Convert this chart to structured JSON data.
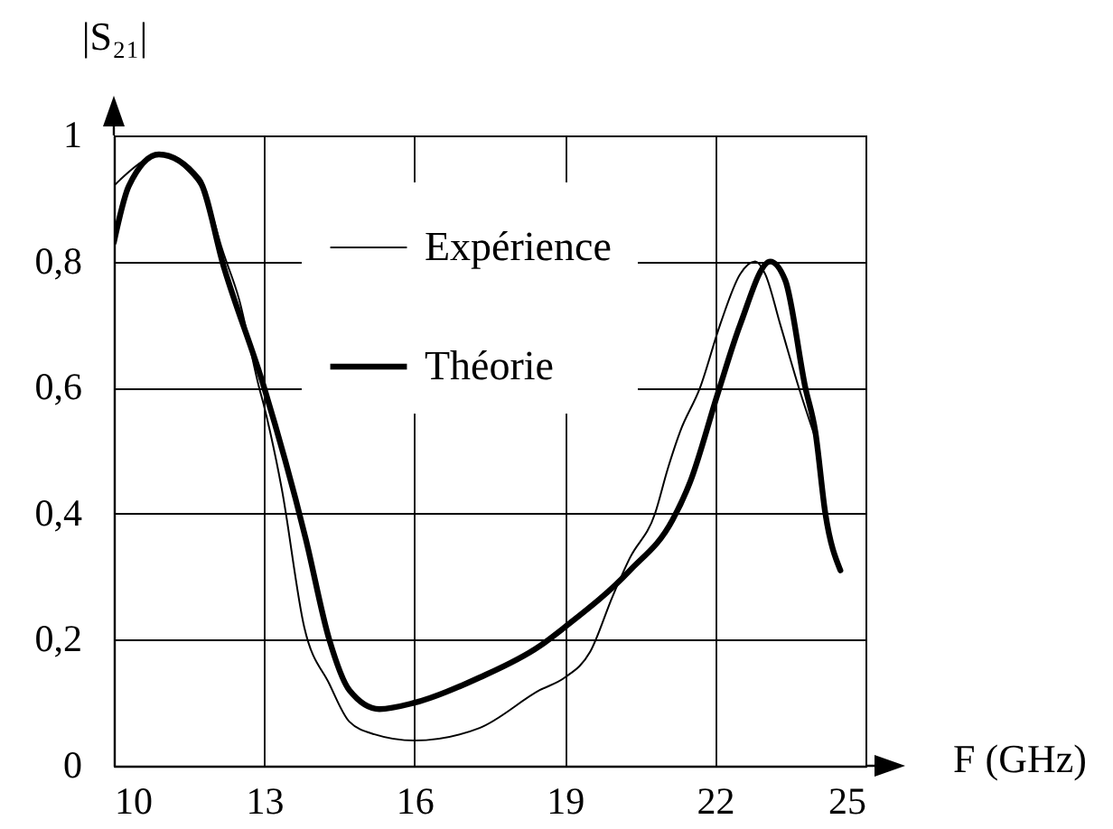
{
  "chart_data": {
    "type": "line",
    "xlabel": "F (GHz)",
    "ylabel": "|S₂₁|",
    "xlim": [
      10,
      25
    ],
    "xticks": [
      10,
      13,
      16,
      19,
      22,
      25
    ],
    "ylim": [
      0,
      1
    ],
    "yticks": [
      0,
      {
        "value": 0.2,
        "label": "0,2"
      },
      {
        "value": 0.4,
        "label": "0,4"
      },
      {
        "value": 0.6,
        "label": "0,6"
      },
      {
        "value": 0.8,
        "label": "0,8"
      },
      1
    ],
    "grid": true,
    "legend": "top",
    "line_style": "solid",
    "series": [
      {
        "name": "Expérience",
        "color": "#000000",
        "x": [
          10,
          10.13,
          10.6,
          10.97,
          11.4,
          11.9,
          12.16,
          12.5,
          12.9,
          13.0,
          13.35,
          13.8,
          14.3,
          14.7,
          15.2,
          16,
          17.3,
          18.5,
          19,
          19.5,
          19.96,
          20.3,
          20.8,
          21.05,
          21.3,
          21.7,
          22.1,
          22.5,
          22.8,
          23.0,
          23.3,
          23.67,
          24.0
        ],
        "values": [
          0.92,
          0.93,
          0.96,
          0.97,
          0.95,
          0.89,
          0.82,
          0.74,
          0.6,
          0.57,
          0.44,
          0.22,
          0.13,
          0.07,
          0.05,
          0.04,
          0.06,
          0.12,
          0.14,
          0.18,
          0.27,
          0.33,
          0.4,
          0.47,
          0.53,
          0.6,
          0.7,
          0.78,
          0.8,
          0.78,
          0.7,
          0.6,
          0.52
        ]
      },
      {
        "name": "Théorie",
        "color": "#000000",
        "x": [
          10,
          10.3,
          10.9,
          11.7,
          12.2,
          13.0,
          13.83,
          14.3,
          14.7,
          15.3,
          16,
          17.3,
          18.5,
          19,
          20.3,
          21.15,
          21.5,
          22.05,
          22.5,
          23.1,
          23.4,
          23.8,
          24.0,
          24.2,
          24.5
        ],
        "values": [
          0.83,
          0.92,
          0.97,
          0.93,
          0.79,
          0.6,
          0.36,
          0.2,
          0.12,
          0.09,
          0.1,
          0.14,
          0.19,
          0.22,
          0.31,
          0.39,
          0.45,
          0.59,
          0.7,
          0.8,
          0.77,
          0.6,
          0.53,
          0.4,
          0.31
        ]
      }
    ]
  }
}
